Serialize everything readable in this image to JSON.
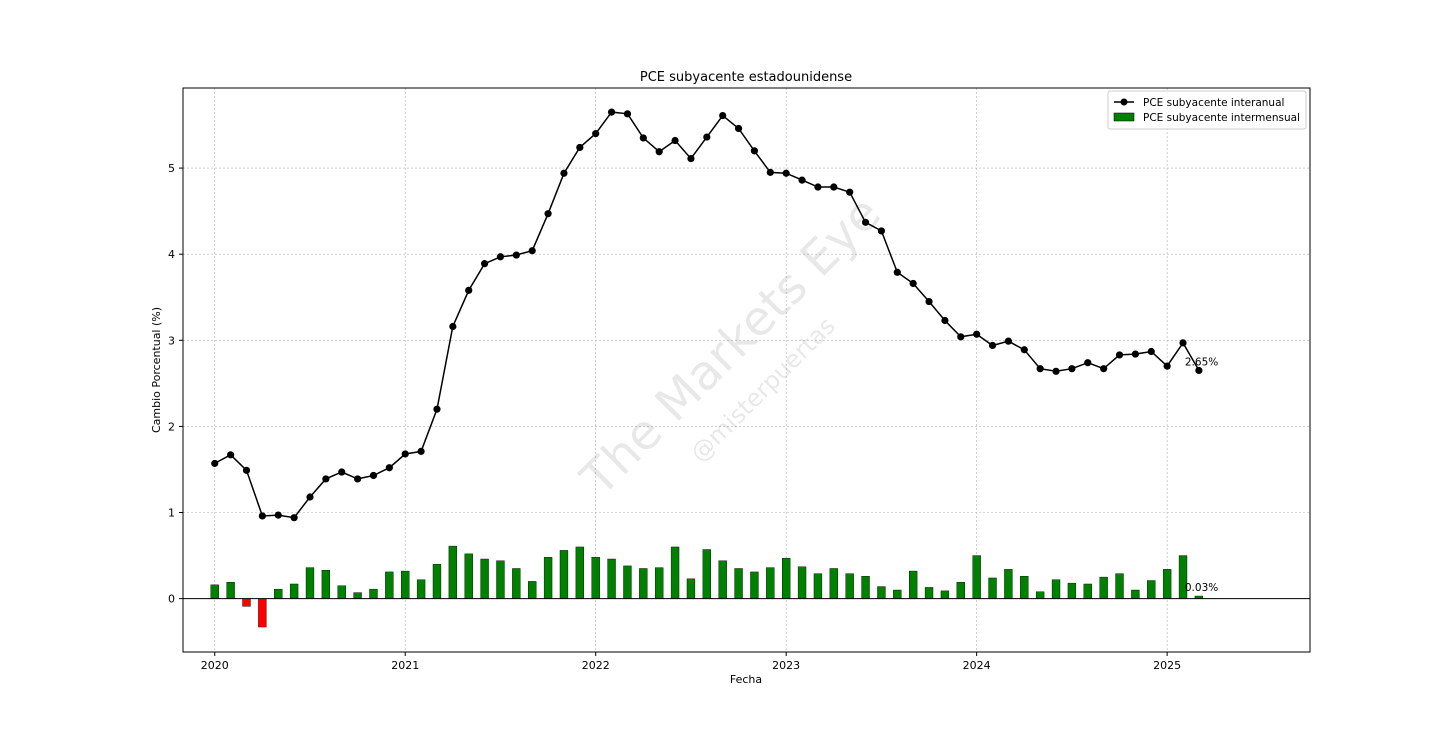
{
  "chart_data": {
    "type": "line+bar",
    "title": "PCE subyacente estadounidense",
    "xlabel": "Fecha",
    "ylabel": "Cambio Porcentual (%)",
    "x_ticks": [
      "2020",
      "2021",
      "2022",
      "2023",
      "2024",
      "2025"
    ],
    "y_ticks": [
      "0",
      "1",
      "2",
      "3",
      "4",
      "5"
    ],
    "ylim": [
      -0.62,
      5.93
    ],
    "x_range_months": [
      -2,
      69
    ],
    "grid": true,
    "legend_position": "top-right",
    "start": "2020-01",
    "series": [
      {
        "name": "PCE subyacente interanual",
        "kind": "line",
        "color": "#000000",
        "values": [
          1.57,
          1.67,
          1.49,
          0.96,
          0.97,
          0.94,
          1.18,
          1.39,
          1.47,
          1.39,
          1.43,
          1.52,
          1.68,
          1.71,
          2.2,
          3.16,
          3.58,
          3.89,
          3.97,
          3.99,
          4.04,
          4.47,
          4.94,
          5.24,
          5.4,
          5.65,
          5.63,
          5.35,
          5.19,
          5.32,
          5.11,
          5.36,
          5.61,
          5.46,
          5.2,
          4.95,
          4.94,
          4.86,
          4.78,
          4.78,
          4.72,
          4.37,
          4.27,
          3.79,
          3.66,
          3.45,
          3.23,
          3.04,
          3.07,
          2.94,
          2.99,
          2.89,
          2.67,
          2.64,
          2.67,
          2.74,
          2.67,
          2.83,
          2.84,
          2.87,
          2.7,
          2.97,
          2.65
        ]
      },
      {
        "name": "PCE subyacente intermensual",
        "kind": "bar",
        "color": "#008000",
        "negative_color": "#ff0000",
        "values": [
          0.16,
          0.19,
          -0.09,
          -0.33,
          0.11,
          0.17,
          0.36,
          0.33,
          0.15,
          0.07,
          0.11,
          0.31,
          0.32,
          0.22,
          0.4,
          0.61,
          0.52,
          0.46,
          0.44,
          0.35,
          0.2,
          0.48,
          0.56,
          0.6,
          0.48,
          0.46,
          0.38,
          0.35,
          0.36,
          0.6,
          0.23,
          0.57,
          0.44,
          0.35,
          0.31,
          0.36,
          0.47,
          0.37,
          0.29,
          0.35,
          0.29,
          0.26,
          0.14,
          0.1,
          0.32,
          0.13,
          0.09,
          0.19,
          0.5,
          0.24,
          0.34,
          0.26,
          0.08,
          0.22,
          0.18,
          0.17,
          0.25,
          0.29,
          0.1,
          0.21,
          0.34,
          0.5,
          0.03
        ]
      }
    ],
    "annotations": [
      {
        "text": "2.65%",
        "series": 0
      },
      {
        "text": "0.03%",
        "series": 1
      }
    ],
    "watermark": {
      "main": "The Markets Eye",
      "sub": "@misterpuertas"
    }
  }
}
